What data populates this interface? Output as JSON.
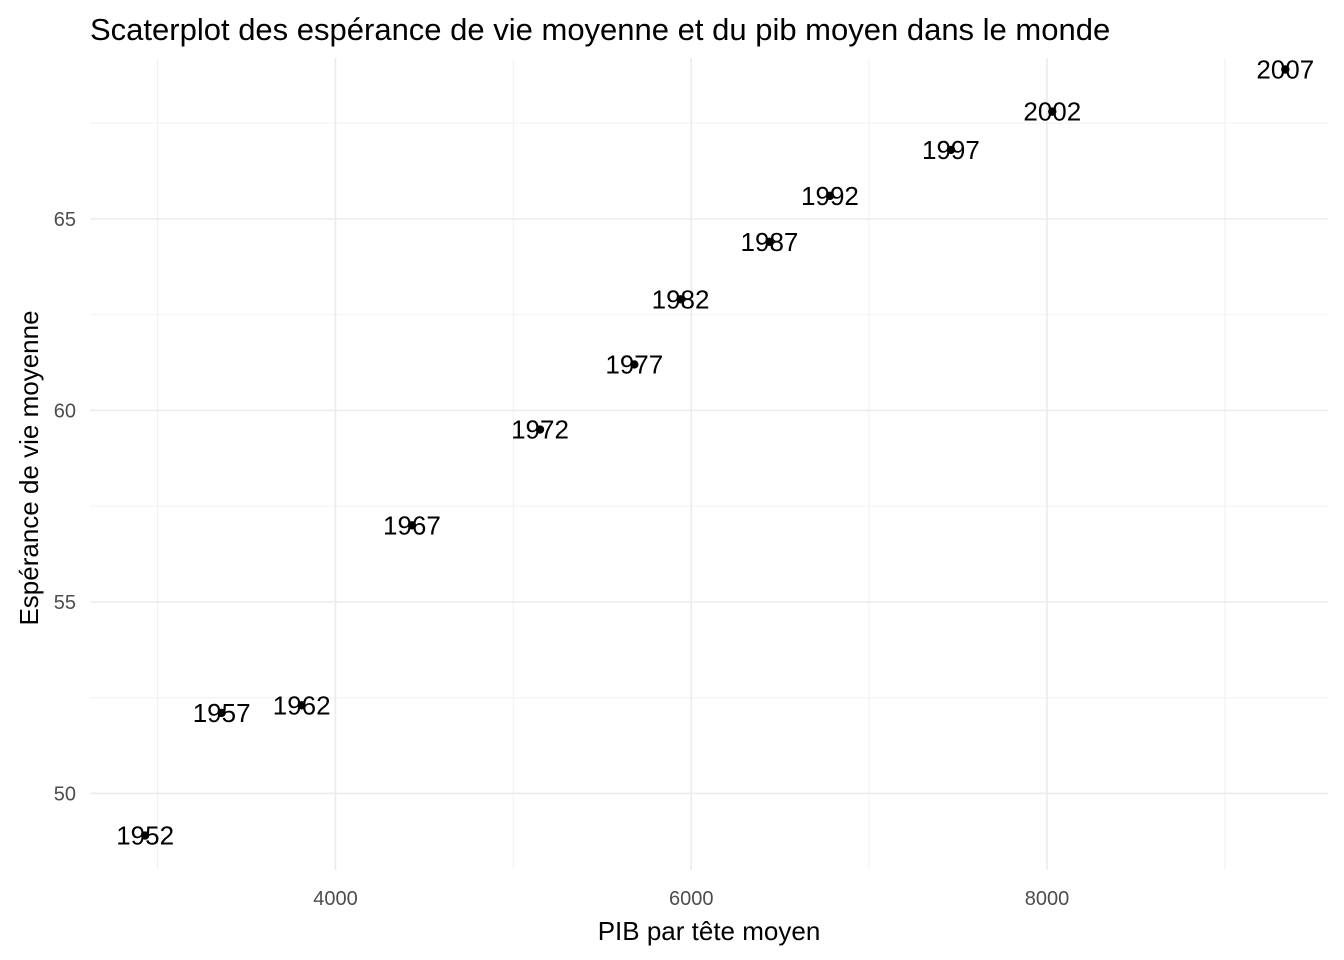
{
  "chart_data": {
    "type": "scatter",
    "title": "Scaterplot des espérance de vie moyenne et du pib moyen dans le monde",
    "xlabel": "PIB par tête moyen",
    "ylabel": "Espérance de vie moyenne",
    "xlim": [
      2620,
      9580
    ],
    "ylim": [
      48.0,
      69.2
    ],
    "x_ticks": [
      4000,
      6000,
      8000
    ],
    "y_ticks": [
      50,
      55,
      60,
      65
    ],
    "x_tick_labels": [
      "4000",
      "6000",
      "8000"
    ],
    "y_tick_labels": [
      "50",
      "55",
      "60",
      "65"
    ],
    "grid": true,
    "legend": "none",
    "point_color": "#000000",
    "points": [
      {
        "label": "1952",
        "x": 2930,
        "y": 48.9
      },
      {
        "label": "1957",
        "x": 3360,
        "y": 52.1
      },
      {
        "label": "1962",
        "x": 3810,
        "y": 52.3
      },
      {
        "label": "1967",
        "x": 4430,
        "y": 57.0
      },
      {
        "label": "1972",
        "x": 5150,
        "y": 59.5
      },
      {
        "label": "1977",
        "x": 5680,
        "y": 61.2
      },
      {
        "label": "1982",
        "x": 5940,
        "y": 62.9
      },
      {
        "label": "1987",
        "x": 6440,
        "y": 64.4
      },
      {
        "label": "1992",
        "x": 6780,
        "y": 65.6
      },
      {
        "label": "1997",
        "x": 7460,
        "y": 66.8
      },
      {
        "label": "2002",
        "x": 8030,
        "y": 67.8
      },
      {
        "label": "2007",
        "x": 9340,
        "y": 68.9
      }
    ]
  }
}
